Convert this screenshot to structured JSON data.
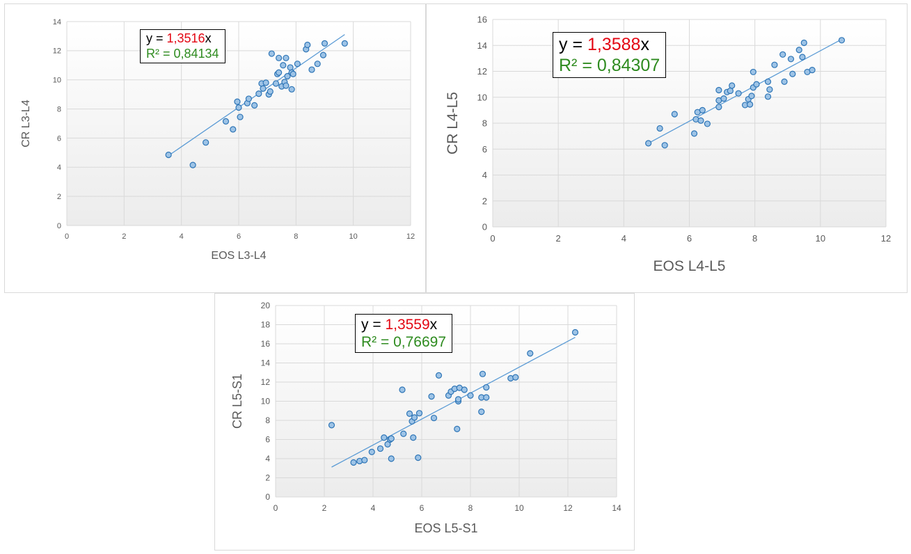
{
  "chart_data": [
    {
      "type": "scatter",
      "title": "",
      "xlabel": "EOS L3-L4",
      "ylabel": "CR L3-L4",
      "xlim": [
        0,
        12
      ],
      "ylim": [
        0,
        14
      ],
      "xticks": [
        0,
        2,
        4,
        6,
        8,
        10,
        12
      ],
      "yticks": [
        0,
        2,
        4,
        6,
        8,
        10,
        12,
        14
      ],
      "grid": true,
      "equation": {
        "prefix": "y = ",
        "coef": "1,3516",
        "suffix": "x",
        "r2": "R² = 0,84134"
      },
      "trendline": {
        "slope": 1.3516,
        "x_range": [
          3.55,
          9.7
        ]
      },
      "points": [
        [
          3.55,
          4.85
        ],
        [
          4.4,
          4.15
        ],
        [
          4.85,
          5.7
        ],
        [
          5.55,
          7.15
        ],
        [
          5.8,
          6.6
        ],
        [
          5.95,
          8.5
        ],
        [
          6.0,
          8.1
        ],
        [
          6.05,
          7.45
        ],
        [
          6.3,
          8.4
        ],
        [
          6.35,
          8.7
        ],
        [
          6.55,
          8.25
        ],
        [
          6.7,
          9.05
        ],
        [
          6.8,
          9.75
        ],
        [
          6.85,
          9.4
        ],
        [
          6.95,
          9.8
        ],
        [
          7.05,
          9.0
        ],
        [
          7.1,
          9.2
        ],
        [
          7.15,
          11.8
        ],
        [
          7.3,
          9.75
        ],
        [
          7.35,
          10.4
        ],
        [
          7.4,
          10.5
        ],
        [
          7.4,
          11.5
        ],
        [
          7.5,
          9.55
        ],
        [
          7.55,
          11.0
        ],
        [
          7.6,
          9.85
        ],
        [
          7.65,
          9.6
        ],
        [
          7.65,
          11.5
        ],
        [
          7.7,
          10.25
        ],
        [
          7.8,
          10.85
        ],
        [
          7.85,
          9.35
        ],
        [
          7.85,
          10.5
        ],
        [
          7.9,
          10.4
        ],
        [
          8.05,
          11.1
        ],
        [
          8.35,
          12.1
        ],
        [
          8.4,
          12.4
        ],
        [
          8.55,
          10.7
        ],
        [
          8.75,
          11.1
        ],
        [
          8.95,
          11.7
        ],
        [
          9.0,
          12.5
        ],
        [
          9.7,
          12.5
        ]
      ]
    },
    {
      "type": "scatter",
      "title": "",
      "xlabel": "EOS L4-L5",
      "ylabel": "CR L4-L5",
      "xlim": [
        0,
        12
      ],
      "ylim": [
        0,
        16
      ],
      "xticks": [
        0,
        2,
        4,
        6,
        8,
        10,
        12
      ],
      "yticks": [
        0,
        2,
        4,
        6,
        8,
        10,
        12,
        14,
        16
      ],
      "grid": true,
      "equation": {
        "prefix": "y = ",
        "coef": "1,3588",
        "suffix": "x",
        "r2": "R² = 0,84307"
      },
      "trendline": {
        "slope": 1.3588,
        "x_range": [
          4.75,
          10.65
        ]
      },
      "points": [
        [
          4.75,
          6.45
        ],
        [
          5.1,
          7.6
        ],
        [
          5.25,
          6.3
        ],
        [
          5.55,
          8.7
        ],
        [
          6.15,
          7.2
        ],
        [
          6.2,
          8.3
        ],
        [
          6.25,
          8.85
        ],
        [
          6.35,
          8.2
        ],
        [
          6.4,
          9.0
        ],
        [
          6.55,
          7.95
        ],
        [
          6.9,
          9.25
        ],
        [
          6.9,
          9.75
        ],
        [
          6.9,
          10.55
        ],
        [
          7.05,
          9.9
        ],
        [
          7.15,
          10.4
        ],
        [
          7.25,
          10.5
        ],
        [
          7.3,
          10.9
        ],
        [
          7.5,
          10.3
        ],
        [
          7.7,
          9.4
        ],
        [
          7.8,
          9.85
        ],
        [
          7.85,
          9.45
        ],
        [
          7.9,
          10.1
        ],
        [
          7.95,
          10.75
        ],
        [
          7.95,
          11.95
        ],
        [
          8.05,
          11.0
        ],
        [
          8.4,
          11.2
        ],
        [
          8.4,
          10.05
        ],
        [
          8.45,
          10.6
        ],
        [
          8.6,
          12.5
        ],
        [
          8.85,
          13.3
        ],
        [
          8.9,
          11.2
        ],
        [
          9.1,
          12.95
        ],
        [
          9.15,
          11.8
        ],
        [
          9.35,
          13.65
        ],
        [
          9.45,
          13.1
        ],
        [
          9.5,
          14.2
        ],
        [
          9.6,
          11.95
        ],
        [
          9.75,
          12.1
        ],
        [
          10.65,
          14.4
        ]
      ]
    },
    {
      "type": "scatter",
      "title": "",
      "xlabel": "EOS L5-S1",
      "ylabel": "CR L5-S1",
      "xlim": [
        0,
        14
      ],
      "ylim": [
        0,
        20
      ],
      "xticks": [
        0,
        2,
        4,
        6,
        8,
        10,
        12,
        14
      ],
      "yticks": [
        0,
        2,
        4,
        6,
        8,
        10,
        12,
        14,
        16,
        18,
        20
      ],
      "grid": true,
      "equation": {
        "prefix": "y = ",
        "coef": "1,3559",
        "suffix": "x",
        "r2": "R² = 0,76697"
      },
      "trendline": {
        "slope": 1.3559,
        "x_range": [
          2.3,
          12.3
        ]
      },
      "points": [
        [
          2.3,
          7.5
        ],
        [
          3.2,
          3.6
        ],
        [
          3.45,
          3.75
        ],
        [
          3.65,
          3.85
        ],
        [
          3.95,
          4.7
        ],
        [
          4.3,
          5.05
        ],
        [
          4.45,
          6.2
        ],
        [
          4.6,
          5.5
        ],
        [
          4.7,
          6.0
        ],
        [
          4.75,
          6.1
        ],
        [
          4.75,
          4.0
        ],
        [
          5.2,
          11.2
        ],
        [
          5.25,
          6.6
        ],
        [
          5.5,
          8.7
        ],
        [
          5.6,
          7.9
        ],
        [
          5.65,
          6.2
        ],
        [
          5.7,
          8.3
        ],
        [
          5.85,
          4.1
        ],
        [
          5.9,
          8.75
        ],
        [
          6.4,
          10.5
        ],
        [
          6.5,
          8.25
        ],
        [
          6.7,
          12.7
        ],
        [
          7.1,
          10.6
        ],
        [
          7.2,
          11.0
        ],
        [
          7.35,
          11.3
        ],
        [
          7.45,
          7.1
        ],
        [
          7.5,
          10.0
        ],
        [
          7.5,
          10.2
        ],
        [
          7.55,
          11.4
        ],
        [
          7.75,
          11.2
        ],
        [
          8.0,
          10.6
        ],
        [
          8.45,
          10.4
        ],
        [
          8.45,
          8.9
        ],
        [
          8.5,
          12.85
        ],
        [
          8.65,
          11.45
        ],
        [
          8.65,
          10.4
        ],
        [
          9.65,
          12.4
        ],
        [
          9.85,
          12.5
        ],
        [
          10.45,
          15.0
        ],
        [
          12.3,
          17.2
        ]
      ]
    }
  ]
}
